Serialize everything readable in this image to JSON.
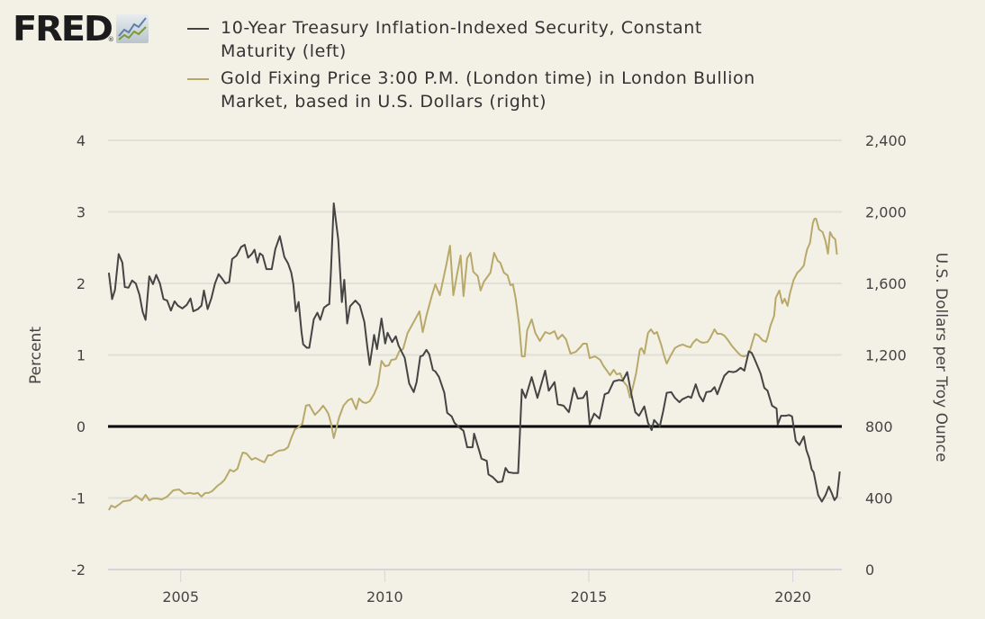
{
  "logo": {
    "text": "FRED",
    "reg_mark": "®",
    "icon": "mini-line-chart-icon"
  },
  "chart_data": {
    "type": "line",
    "title": "",
    "xlabel": "",
    "ylabel_left": "Percent",
    "ylabel_right": "U.S. Dollars per Troy Ounce",
    "x_ticks": [
      "2005",
      "2010",
      "2015",
      "2020"
    ],
    "x_tick_values": [
      2005,
      2010,
      2015,
      2020
    ],
    "xlim": [
      2003.22,
      2021.2
    ],
    "ylim_left": [
      -2,
      4
    ],
    "ylim_right": [
      0,
      2400
    ],
    "y_ticks_left": [
      "4",
      "3",
      "2",
      "1",
      "0",
      "-1",
      "-2"
    ],
    "y_tick_values_left": [
      4,
      3,
      2,
      1,
      0,
      -1,
      -2
    ],
    "y_ticks_right": [
      "2,400",
      "2,000",
      "1,600",
      "1,200",
      "800",
      "400",
      "0"
    ],
    "y_tick_values_right": [
      2400,
      2000,
      1600,
      1200,
      800,
      400,
      0
    ],
    "grid": true,
    "zero_line": {
      "axis": "left",
      "value": 0,
      "color": "#000000"
    },
    "legend_placement": "top",
    "series": [
      {
        "name": "10-Year Treasury Inflation-Indexed Security, Constant Maturity (left)",
        "axis": "left",
        "color": "#444444",
        "x": [
          2003.24,
          2003.32,
          2003.39,
          2003.48,
          2003.57,
          2003.63,
          2003.72,
          2003.81,
          2003.9,
          2003.99,
          2004.07,
          2004.14,
          2004.23,
          2004.32,
          2004.4,
          2004.49,
          2004.58,
          2004.67,
          2004.76,
          2004.85,
          2004.93,
          2005.04,
          2005.15,
          2005.24,
          2005.31,
          2005.42,
          2005.51,
          2005.57,
          2005.66,
          2005.75,
          2005.84,
          2005.93,
          2006.01,
          2006.1,
          2006.19,
          2006.26,
          2006.37,
          2006.48,
          2006.57,
          2006.65,
          2006.74,
          2006.81,
          2006.88,
          2006.94,
          2007.01,
          2007.1,
          2007.23,
          2007.32,
          2007.43,
          2007.54,
          2007.63,
          2007.71,
          2007.76,
          2007.82,
          2007.89,
          2007.96,
          2008.0,
          2008.09,
          2008.15,
          2008.26,
          2008.35,
          2008.42,
          2008.51,
          2008.6,
          2008.64,
          2008.68,
          2008.75,
          2008.86,
          2008.95,
          2009.01,
          2009.08,
          2009.15,
          2009.28,
          2009.39,
          2009.5,
          2009.57,
          2009.63,
          2009.7,
          2009.74,
          2009.81,
          2009.92,
          2010.01,
          2010.07,
          2010.18,
          2010.27,
          2010.34,
          2010.49,
          2010.6,
          2010.71,
          2010.78,
          2010.87,
          2010.93,
          2011.02,
          2011.09,
          2011.18,
          2011.24,
          2011.33,
          2011.46,
          2011.53,
          2011.64,
          2011.71,
          2011.82,
          2011.93,
          2012.02,
          2012.15,
          2012.19,
          2012.32,
          2012.37,
          2012.5,
          2012.54,
          2012.65,
          2012.77,
          2012.88,
          2012.96,
          2013.03,
          2013.14,
          2013.27,
          2013.36,
          2013.45,
          2013.6,
          2013.74,
          2013.93,
          2014.02,
          2014.16,
          2014.24,
          2014.38,
          2014.51,
          2014.64,
          2014.73,
          2014.86,
          2014.95,
          2015.02,
          2015.13,
          2015.26,
          2015.39,
          2015.48,
          2015.61,
          2015.74,
          2015.83,
          2015.94,
          2016.05,
          2016.14,
          2016.23,
          2016.36,
          2016.45,
          2016.54,
          2016.6,
          2016.74,
          2016.82,
          2016.91,
          2017.02,
          2017.11,
          2017.22,
          2017.29,
          2017.44,
          2017.51,
          2017.62,
          2017.71,
          2017.8,
          2017.88,
          2017.99,
          2018.08,
          2018.15,
          2018.24,
          2018.32,
          2018.43,
          2018.54,
          2018.61,
          2018.72,
          2018.81,
          2018.92,
          2018.99,
          2019.05,
          2019.16,
          2019.21,
          2019.3,
          2019.38,
          2019.49,
          2019.6,
          2019.63,
          2019.71,
          2019.82,
          2019.91,
          2019.98,
          2020.07,
          2020.16,
          2020.27,
          2020.33,
          2020.4,
          2020.46,
          2020.51,
          2020.57,
          2020.62,
          2020.71,
          2020.8,
          2020.88,
          2020.95,
          2021.02,
          2021.08,
          2021.15
        ],
        "values": [
          2.15,
          1.78,
          1.91,
          2.41,
          2.29,
          1.95,
          1.94,
          2.04,
          2.0,
          1.84,
          1.6,
          1.49,
          2.1,
          1.99,
          2.12,
          2.0,
          1.78,
          1.76,
          1.62,
          1.75,
          1.69,
          1.65,
          1.7,
          1.79,
          1.61,
          1.64,
          1.69,
          1.9,
          1.64,
          1.79,
          2.0,
          2.13,
          2.07,
          2.0,
          2.02,
          2.34,
          2.39,
          2.51,
          2.54,
          2.36,
          2.41,
          2.47,
          2.29,
          2.42,
          2.39,
          2.2,
          2.2,
          2.48,
          2.66,
          2.37,
          2.28,
          2.15,
          1.99,
          1.61,
          1.74,
          1.32,
          1.15,
          1.1,
          1.1,
          1.5,
          1.59,
          1.49,
          1.66,
          1.7,
          1.71,
          2.15,
          3.12,
          2.61,
          1.74,
          2.05,
          1.44,
          1.68,
          1.76,
          1.69,
          1.46,
          1.13,
          0.86,
          1.12,
          1.28,
          1.08,
          1.51,
          1.16,
          1.31,
          1.18,
          1.26,
          1.13,
          0.96,
          0.6,
          0.48,
          0.62,
          0.98,
          0.99,
          1.07,
          1.01,
          0.79,
          0.77,
          0.69,
          0.47,
          0.19,
          0.14,
          0.05,
          -0.01,
          -0.06,
          -0.29,
          -0.29,
          -0.1,
          -0.35,
          -0.45,
          -0.48,
          -0.67,
          -0.71,
          -0.78,
          -0.77,
          -0.58,
          -0.64,
          -0.65,
          -0.65,
          0.52,
          0.4,
          0.69,
          0.4,
          0.78,
          0.5,
          0.62,
          0.31,
          0.29,
          0.2,
          0.54,
          0.39,
          0.4,
          0.49,
          0.03,
          0.18,
          0.11,
          0.45,
          0.47,
          0.63,
          0.65,
          0.64,
          0.76,
          0.43,
          0.2,
          0.15,
          0.28,
          0.05,
          -0.05,
          0.09,
          0.0,
          0.21,
          0.47,
          0.48,
          0.4,
          0.34,
          0.38,
          0.42,
          0.4,
          0.59,
          0.43,
          0.35,
          0.48,
          0.49,
          0.55,
          0.45,
          0.59,
          0.71,
          0.77,
          0.76,
          0.77,
          0.82,
          0.78,
          1.05,
          1.03,
          0.96,
          0.81,
          0.74,
          0.54,
          0.5,
          0.29,
          0.25,
          0.03,
          0.15,
          0.15,
          0.16,
          0.14,
          -0.2,
          -0.26,
          -0.14,
          -0.33,
          -0.44,
          -0.6,
          -0.64,
          -0.81,
          -0.96,
          -1.05,
          -0.96,
          -0.84,
          -0.93,
          -1.03,
          -0.98,
          -0.63
        ]
      },
      {
        "name": "Gold Fixing Price 3:00 P.M. (London time) in London Bullion Market, based in U.S. Dollars (right)",
        "axis": "right",
        "color": "#b8a96a",
        "x": [
          2003.24,
          2003.3,
          2003.39,
          2003.48,
          2003.59,
          2003.76,
          2003.9,
          2004.05,
          2004.14,
          2004.23,
          2004.32,
          2004.43,
          2004.54,
          2004.67,
          2004.82,
          2004.96,
          2005.09,
          2005.22,
          2005.33,
          2005.42,
          2005.51,
          2005.6,
          2005.68,
          2005.77,
          2005.9,
          2005.99,
          2006.08,
          2006.21,
          2006.3,
          2006.39,
          2006.48,
          2006.52,
          2006.61,
          2006.74,
          2006.83,
          2006.96,
          2007.05,
          2007.14,
          2007.23,
          2007.32,
          2007.4,
          2007.54,
          2007.63,
          2007.71,
          2007.8,
          2007.85,
          2007.98,
          2008.07,
          2008.15,
          2008.29,
          2008.4,
          2008.49,
          2008.57,
          2008.62,
          2008.68,
          2008.75,
          2008.88,
          2008.99,
          2009.1,
          2009.19,
          2009.3,
          2009.37,
          2009.46,
          2009.54,
          2009.63,
          2009.74,
          2009.83,
          2009.92,
          2010.01,
          2010.1,
          2010.16,
          2010.27,
          2010.36,
          2010.45,
          2010.56,
          2010.71,
          2010.85,
          2010.93,
          2011.02,
          2011.15,
          2011.24,
          2011.35,
          2011.51,
          2011.6,
          2011.68,
          2011.77,
          2011.86,
          2011.93,
          2012.02,
          2012.1,
          2012.17,
          2012.28,
          2012.35,
          2012.43,
          2012.59,
          2012.68,
          2012.77,
          2012.83,
          2012.92,
          2013.01,
          2013.08,
          2013.14,
          2013.21,
          2013.29,
          2013.36,
          2013.43,
          2013.49,
          2013.6,
          2013.69,
          2013.8,
          2013.93,
          2014.04,
          2014.16,
          2014.24,
          2014.35,
          2014.44,
          2014.55,
          2014.68,
          2014.79,
          2014.86,
          2014.95,
          2015.02,
          2015.15,
          2015.28,
          2015.35,
          2015.46,
          2015.52,
          2015.61,
          2015.68,
          2015.77,
          2015.85,
          2015.94,
          2016.01,
          2016.07,
          2016.16,
          2016.25,
          2016.29,
          2016.36,
          2016.45,
          2016.52,
          2016.6,
          2016.67,
          2016.78,
          2016.85,
          2016.91,
          2017.02,
          2017.11,
          2017.22,
          2017.31,
          2017.4,
          2017.49,
          2017.55,
          2017.64,
          2017.73,
          2017.8,
          2017.91,
          2017.97,
          2018.08,
          2018.15,
          2018.24,
          2018.32,
          2018.41,
          2018.5,
          2018.61,
          2018.72,
          2018.79,
          2018.88,
          2018.94,
          2019.01,
          2019.07,
          2019.16,
          2019.25,
          2019.34,
          2019.38,
          2019.45,
          2019.54,
          2019.58,
          2019.67,
          2019.74,
          2019.8,
          2019.87,
          2019.93,
          2020.02,
          2020.11,
          2020.18,
          2020.27,
          2020.31,
          2020.35,
          2020.42,
          2020.49,
          2020.53,
          2020.57,
          2020.64,
          2020.73,
          2020.8,
          2020.86,
          2020.91,
          2020.97,
          2021.04,
          2021.08
        ],
        "values": [
          332,
          357,
          347,
          362,
          382,
          387,
          413,
          387,
          418,
          387,
          397,
          397,
          392,
          408,
          443,
          448,
          423,
          428,
          423,
          428,
          408,
          428,
          428,
          438,
          468,
          483,
          503,
          558,
          548,
          563,
          629,
          654,
          649,
          614,
          624,
          609,
          599,
          639,
          639,
          654,
          664,
          669,
          684,
          735,
          785,
          790,
          815,
          916,
          921,
          865,
          890,
          916,
          890,
          870,
          820,
          735,
          850,
          916,
          946,
          956,
          896,
          956,
          936,
          931,
          941,
          981,
          1031,
          1167,
          1137,
          1142,
          1172,
          1177,
          1222,
          1233,
          1323,
          1384,
          1444,
          1328,
          1419,
          1529,
          1595,
          1534,
          1706,
          1811,
          1534,
          1650,
          1756,
          1529,
          1741,
          1771,
          1665,
          1640,
          1560,
          1610,
          1660,
          1771,
          1726,
          1716,
          1660,
          1645,
          1590,
          1595,
          1514,
          1373,
          1192,
          1192,
          1338,
          1399,
          1323,
          1278,
          1328,
          1318,
          1333,
          1288,
          1313,
          1288,
          1207,
          1217,
          1243,
          1263,
          1263,
          1182,
          1192,
          1172,
          1142,
          1107,
          1087,
          1117,
          1092,
          1097,
          1051,
          1026,
          961,
          1011,
          1097,
          1228,
          1238,
          1207,
          1323,
          1343,
          1318,
          1328,
          1253,
          1192,
          1152,
          1202,
          1238,
          1253,
          1258,
          1248,
          1243,
          1268,
          1288,
          1273,
          1268,
          1273,
          1293,
          1343,
          1318,
          1318,
          1308,
          1283,
          1253,
          1223,
          1197,
          1192,
          1197,
          1217,
          1273,
          1318,
          1308,
          1283,
          1273,
          1298,
          1363,
          1419,
          1519,
          1560,
          1489,
          1514,
          1474,
          1545,
          1620,
          1660,
          1675,
          1700,
          1751,
          1791,
          1826,
          1937,
          1962,
          1962,
          1902,
          1887,
          1836,
          1766,
          1887,
          1861,
          1846,
          1761
        ]
      }
    ]
  }
}
